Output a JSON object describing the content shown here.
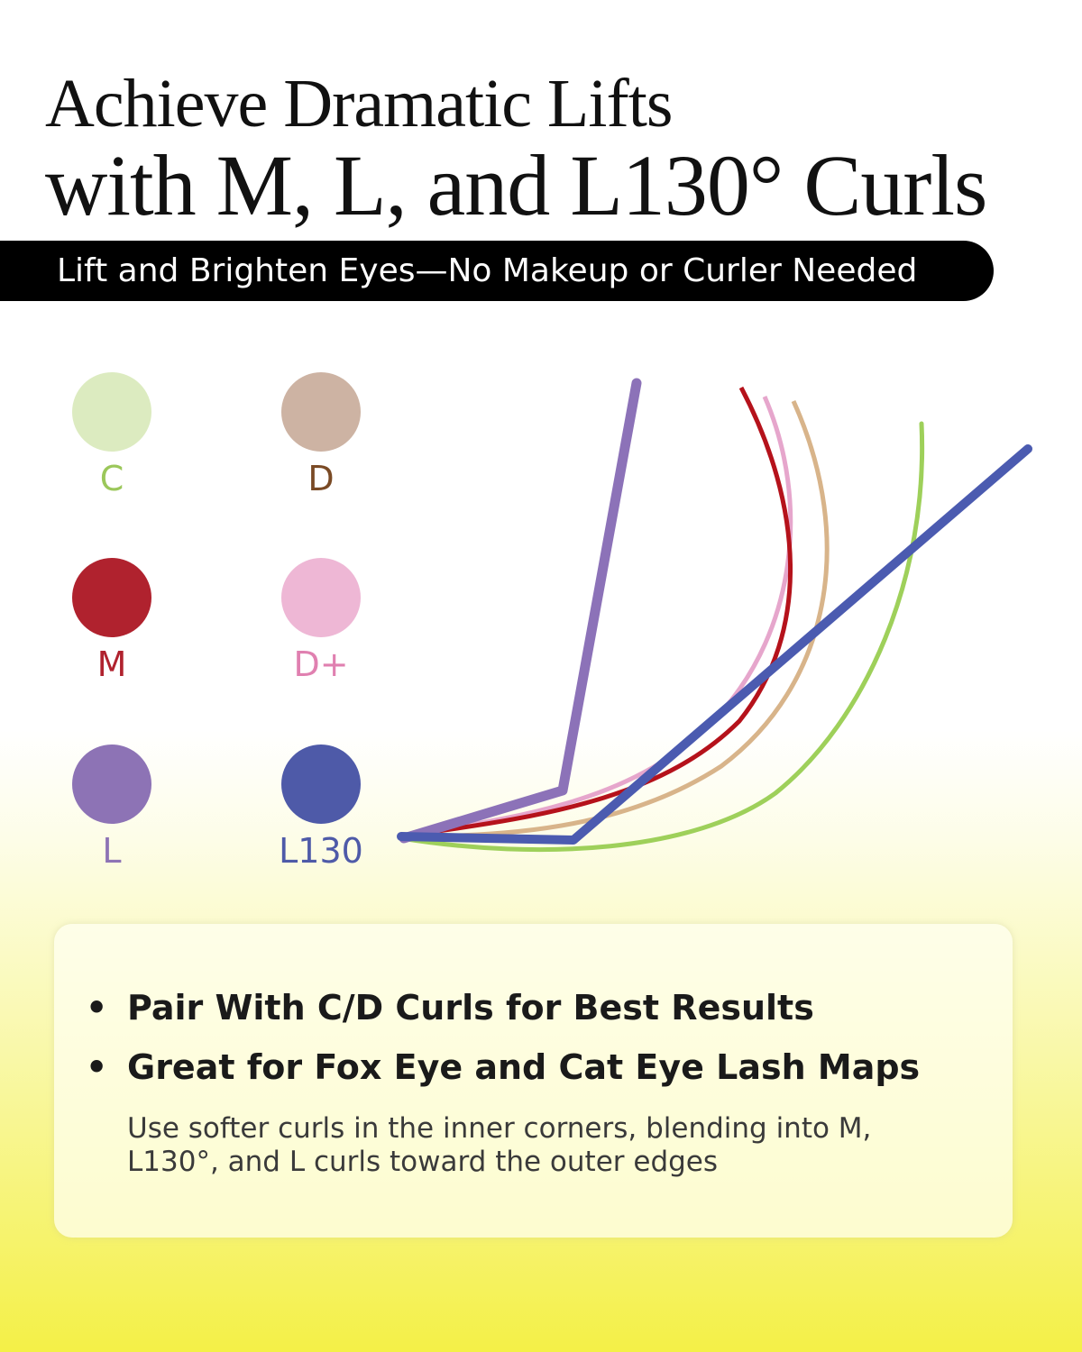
{
  "title": {
    "line1": "Achieve Dramatic Lifts",
    "line2": "with M, L, and L130° Curls"
  },
  "banner": {
    "text": "Lift and Brighten Eyes—No Makeup or Curler Needed"
  },
  "curls": [
    {
      "label": "C",
      "color": "#dcebc0",
      "text_color": "#9bc75a",
      "stroke": "#9ed05a"
    },
    {
      "label": "D",
      "color": "#cdb3a3",
      "text_color": "#7a4a25",
      "stroke": "#d8b48a"
    },
    {
      "label": "M",
      "color": "#b0222e",
      "text_color": "#b0222e",
      "stroke": "#b5121b"
    },
    {
      "label": "D+",
      "color": "#eeb7d5",
      "text_color": "#e080b0",
      "stroke": "#e6a6cc"
    },
    {
      "label": "L",
      "color": "#8d73b5",
      "text_color": "#8d73b5",
      "stroke": "#8c72b8"
    },
    {
      "label": "L130",
      "color": "#4e5aa8",
      "text_color": "#4e5aa8",
      "stroke": "#4b5bb0"
    }
  ],
  "panel": {
    "bullets": [
      "Pair With C/D Curls for Best Results",
      "Great for Fox Eye and Cat Eye Lash Maps"
    ],
    "bullet_symbol": "•",
    "note": "Use softer curls in the inner corners, blending into M, L130°, and L curls toward the outer edges"
  }
}
